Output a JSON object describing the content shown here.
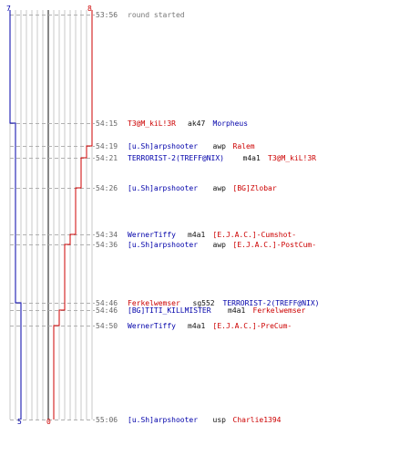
{
  "scores": {
    "ct_start": "7",
    "t_start": "8",
    "ct_end": "5",
    "t_end": "0"
  },
  "colors": {
    "ct": "#0000aa",
    "t": "#cc0000",
    "dash": "#b0b0b0",
    "grid": "#c8c8c8",
    "center": "#888888"
  },
  "events": [
    {
      "time": "53:56",
      "type": "note",
      "text": "round started"
    },
    {
      "time": "54:15",
      "killer": "T3@M_kiL!3R",
      "killer_team": "t",
      "weapon": "ak47",
      "victim": "Morpheus",
      "victim_team": "ct"
    },
    {
      "time": "54:19",
      "killer": "[u.Sh]arpshooter",
      "killer_team": "ct",
      "weapon": "awp",
      "victim": "Ralem",
      "victim_team": "t"
    },
    {
      "time": "54:21",
      "killer": "TERRORIST-2(TREFF@NIX)",
      "killer_team": "ct",
      "weapon": "m4a1",
      "victim": "T3@M_kiL!3R",
      "victim_team": "t"
    },
    {
      "time": "54:26",
      "killer": "[u.Sh]arpshooter",
      "killer_team": "ct",
      "weapon": "awp",
      "victim": "[BG]Zlobar",
      "victim_team": "t"
    },
    {
      "time": "54:34",
      "killer": "WernerTiffy",
      "killer_team": "ct",
      "weapon": "m4a1",
      "victim": "[E.J.A.C.]-Cumshot-",
      "victim_team": "t"
    },
    {
      "time": "54:36",
      "killer": "[u.Sh]arpshooter",
      "killer_team": "ct",
      "weapon": "awp",
      "victim": "[E.J.A.C.]-PostCum-",
      "victim_team": "t"
    },
    {
      "time": "54:46",
      "killer": "Ferkelwemser",
      "killer_team": "t",
      "weapon": "sg552",
      "victim": "TERRORIST-2(TREFF@NIX)",
      "victim_team": "ct"
    },
    {
      "time": "54:46",
      "killer": "[BG]TITI_KILLMISTER",
      "killer_team": "ct",
      "weapon": "m4a1",
      "victim": "Ferkelwemser",
      "victim_team": "t"
    },
    {
      "time": "54:50",
      "killer": "WernerTiffy",
      "killer_team": "ct",
      "weapon": "m4a1",
      "victim": "[E.J.A.C.]-PreCum-",
      "victim_team": "t"
    },
    {
      "time": "55:06",
      "killer": "[u.Sh]arpshooter",
      "killer_team": "ct",
      "weapon": "usp",
      "victim": "Charlie1394",
      "victim_team": "t"
    }
  ]
}
